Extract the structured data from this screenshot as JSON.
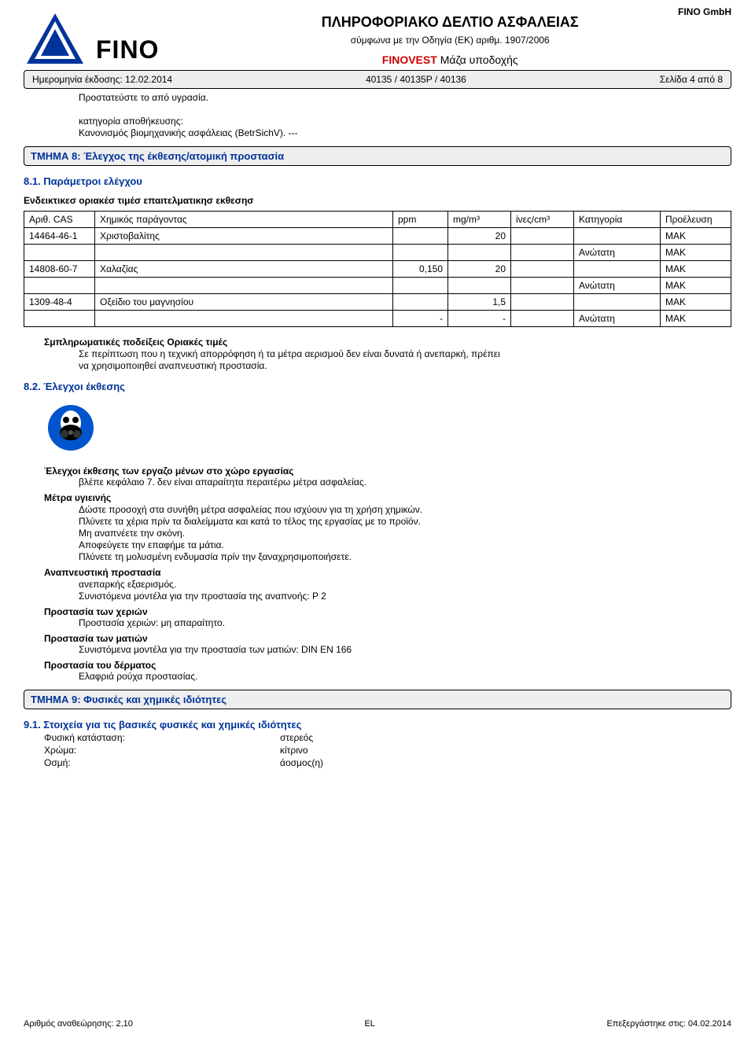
{
  "company": "FINO GmbH",
  "logo_text": "FINO",
  "logo_colors": {
    "triangle": "#003399",
    "text": "#000000"
  },
  "doc_title": "ΠΛΗΡΟΦΟΡΙΑΚΟ ΔΕΛΤΙΟ ΑΣΦΑΛΕΙΑΣ",
  "doc_subtitle": "σύμφωνα με την Οδηγία (ΕΚ) αριθμ. 1907/2006",
  "finovest": "FINOVEST",
  "finovest_suffix": "Μάζα υποδοχής",
  "top_bar": {
    "date_label": "Ημερομηνία έκδοσης: 12.02.2014",
    "code": "40135 / 40135P / 40136",
    "page": "Σελίδα 4 από 8"
  },
  "protect_line": "Προστατεύστε το από υγρασία.",
  "storage_cat_label": "κατηγορία αποθήκευσης:",
  "storage_cat_val": "Κανονισμός βιομηχανικής ασφάλειας (BetrSichV). ---",
  "sec8_title": "ΤΜΗΜΑ 8: Έλεγχος της έκθεσης/ατομική προστασία",
  "sec81_title": "8.1. Παράμετροι ελέγχου",
  "limits_heading": "Ενδεικτικεσ οριακέσ τιμέσ επαιτελματικησ εκθεσησ",
  "limits_table": {
    "columns": [
      "Αριθ. CAS",
      "Χημικός παράγοντας",
      "ppm",
      "mg/m³",
      "ίνες/cm³",
      "Κατηγορία",
      "Προέλευση"
    ],
    "rows": [
      [
        "14464-46-1",
        "Χριστοβαλίτης",
        "",
        "20",
        "",
        "",
        "MAK"
      ],
      [
        "",
        "",
        "",
        "",
        "",
        "Ανώτατη",
        "MAK"
      ],
      [
        "14808-60-7",
        "Χαλαζίας",
        "0,150",
        "20",
        "",
        "",
        "MAK"
      ],
      [
        "",
        "",
        "",
        "",
        "",
        "Ανώτατη",
        "MAK"
      ],
      [
        "1309-48-4",
        "Οξείδιο του μαγνησίου",
        "",
        "1,5",
        "",
        "",
        "MAK"
      ],
      [
        "",
        "",
        "-",
        "-",
        "",
        "Ανώτατη",
        "MAK"
      ]
    ]
  },
  "suppl_heading": "Σμπληρωματικές ποδείξεις Οριακές τιμές",
  "suppl_text1": "Σε περίπτωση που η τεχνική απορρόφηση ή τα μέτρα αερισμού δεν είναι δυνατά ή ανεπαρκή, πρέπει",
  "suppl_text2": "να χρησιμοποιηθεί αναπνευστική προστασία.",
  "sec82_title": "8.2. Έλεγχοι έκθεσης",
  "resp_icon_colors": {
    "bg": "#0055cc",
    "fg": "#ffffff",
    "mask": "#000000"
  },
  "workplace_heading": "Έλεγχοι έκθεσης των εργαζο μένων στο χώρο εργασίας",
  "workplace_text": "βλέπε κεφάλαιο 7. δεν είναι απαραίτητα περαιτέρω μέτρα ασφαλείας.",
  "hygiene_heading": "Μέτρα υγιεινής",
  "hygiene_lines": [
    "Δώστε προσοχή στα συνήθη μέτρα ασφαλείας που ισχύουν για τη χρήση χημικών.",
    "Πλύνετε τα χέρια πρίν τα διαλείμματα και κατά το τέλος της εργασίας με το προϊόν.",
    "Μη αναπνέετε την σκόνη.",
    "Αποφεύγετε την επαφήμε τα μάτια.",
    "Πλύνετε τη μολυσμένη ενδυμασία πρίν την ξαναχρησιμοποιήσετε."
  ],
  "resp_heading": "Αναπνευστική προστασία",
  "resp_lines": [
    "ανεπαρκής εξαερισμός.",
    "Συνιστόμενα μοντέλα για την προστασία της αναπνοής: P 2"
  ],
  "hands_heading": "Προστασία των χεριών",
  "hands_text": "Προστασία χεριών: μη απαραίτητο.",
  "eyes_heading": "Προστασία των ματιών",
  "eyes_text": "Συνιστόμενα μοντέλα για την προστασία των ματιών: DIN EN 166",
  "skin_heading": "Προστασία του δέρματος",
  "skin_text": "Ελαφριά ρούχα προστασίας.",
  "sec9_title": "ΤΜΗΜΑ 9: Φυσικές και χημικές ιδιότητες",
  "sec91_title": "9.1. Στοιχεία για τις βασικές φυσικές και χημικές ιδιότητες",
  "phys_state_label": "Φυσική κατάσταση:",
  "phys_state_val": "στερεός",
  "color_label": "Χρώμα:",
  "color_val": "κίτρινο",
  "odor_label": "Οσμή:",
  "odor_val": "άοσμος(η)",
  "footer": {
    "rev": "Αριθμός αναθεώρησης: 2,10",
    "lang": "EL",
    "proc": "Επεξεργάστηκε στις: 04.02.2014"
  }
}
